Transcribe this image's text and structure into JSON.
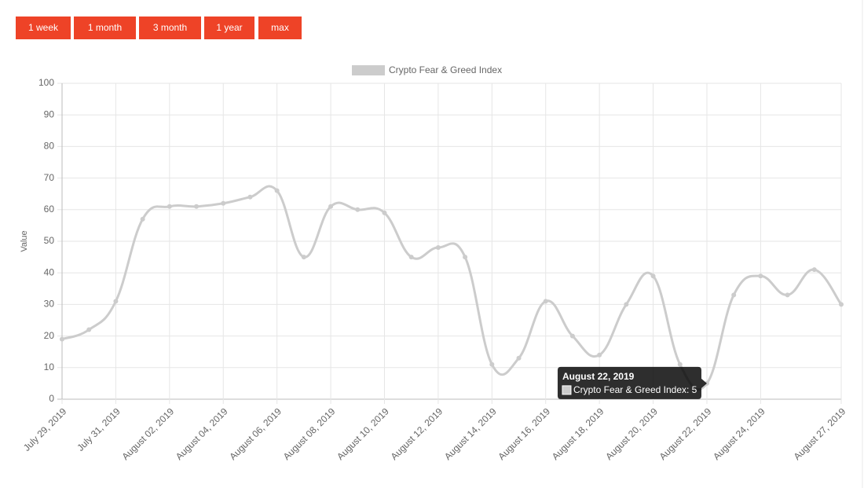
{
  "buttons": [
    "1 week",
    "1 month",
    "3 month",
    "1 year",
    "max"
  ],
  "chart_data": {
    "type": "line",
    "y_label": "Value",
    "categories": [
      "July 29, 2019",
      null,
      "July 31, 2019",
      null,
      "August 02, 2019",
      null,
      "August 04, 2019",
      null,
      "August 06, 2019",
      null,
      "August 08, 2019",
      null,
      "August 10, 2019",
      null,
      "August 12, 2019",
      null,
      "August 14, 2019",
      null,
      "August 16, 2019",
      null,
      "August 18, 2019",
      null,
      "August 20, 2019",
      null,
      "August 22, 2019",
      null,
      "August 24, 2019",
      null,
      null,
      "August 27, 2019"
    ],
    "series": [
      {
        "name": "Crypto Fear & Greed Index",
        "color": "#cccccc",
        "values": [
          19,
          22,
          31,
          57,
          61,
          61,
          62,
          64,
          66,
          45,
          61,
          60,
          59,
          45,
          48,
          45,
          11,
          13,
          31,
          20,
          14,
          30,
          39,
          11,
          5,
          33,
          39,
          33,
          41,
          30
        ]
      }
    ],
    "ylim": [
      0,
      100
    ],
    "yticks": [
      0,
      10,
      20,
      30,
      40,
      50,
      60,
      70,
      80,
      90,
      100
    ],
    "grid": true,
    "legend": "top",
    "tooltip": {
      "title": "August 22, 2019",
      "label": "Crypto Fear & Greed Index: 5"
    }
  }
}
